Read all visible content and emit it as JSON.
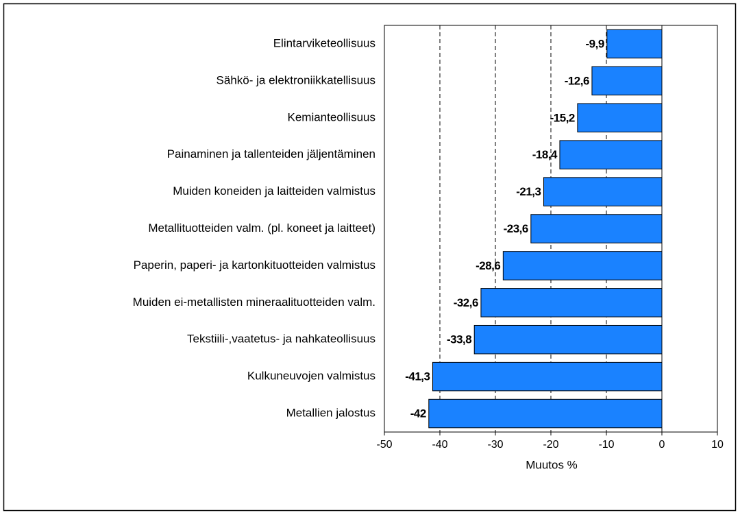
{
  "chart_data": {
    "type": "bar",
    "orientation": "horizontal",
    "categories": [
      "Elintarviketeollisuus",
      "Sähkö- ja elektroniikkatellisuus",
      "Kemianteollisuus",
      "Painaminen ja tallenteiden jäljentäminen",
      "Muiden koneiden ja laitteiden valmistus",
      "Metallituotteiden valm. (pl. koneet ja laitteet)",
      "Paperin, paperi- ja kartonkituotteiden valmistus",
      "Muiden ei-metallisten mineraalituotteiden valm.",
      "Tekstiili-,vaatetus- ja nahkateollisuus",
      "Kulkuneuvojen valmistus",
      "Metallien jalostus"
    ],
    "values": [
      -9.9,
      -12.6,
      -15.2,
      -18.4,
      -21.3,
      -23.6,
      -28.6,
      -32.6,
      -33.8,
      -41.3,
      -42
    ],
    "value_labels": [
      "-9,9",
      "-12,6",
      "-15,2",
      "-18,4",
      "-21,3",
      "-23,6",
      "-28,6",
      "-32,6",
      "-33,8",
      "-41,3",
      "-42"
    ],
    "color": "#1a82ff",
    "xlabel": "Muutos %",
    "xlim": [
      -50,
      10
    ],
    "xticks": [
      -50,
      -40,
      -30,
      -20,
      -10,
      0,
      10
    ],
    "grid": true
  }
}
